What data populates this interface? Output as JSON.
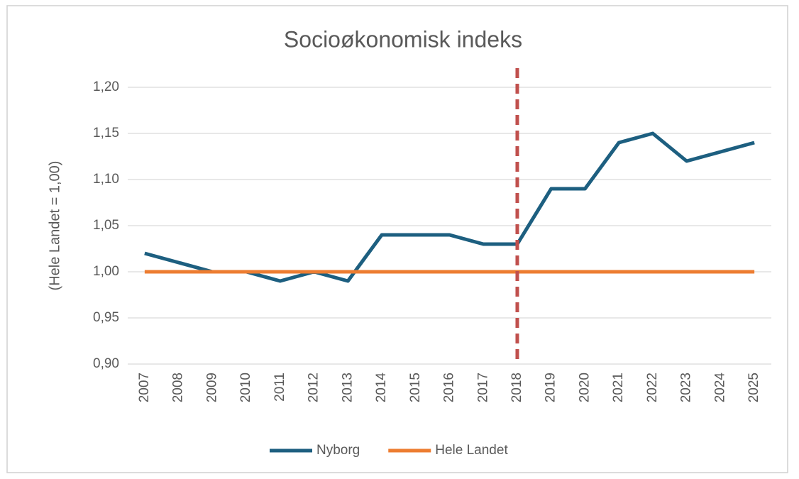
{
  "chart_data": {
    "type": "line",
    "title": "Socioøkonomisk indeks",
    "y_label": "(Hele Landet = 1,00)",
    "categories": [
      "2007",
      "2008",
      "2009",
      "2010",
      "2011",
      "2012",
      "2013",
      "2014",
      "2015",
      "2016",
      "2017",
      "2018",
      "2019",
      "2020",
      "2021",
      "2022",
      "2023",
      "2024",
      "2025"
    ],
    "series": [
      {
        "name": "Nyborg",
        "color": "#1d5f80",
        "values": [
          1.02,
          1.01,
          1.0,
          1.0,
          0.99,
          1.0,
          0.99,
          1.04,
          1.04,
          1.04,
          1.03,
          1.03,
          1.09,
          1.09,
          1.14,
          1.15,
          1.12,
          1.13,
          1.14
        ]
      },
      {
        "name": "Hele Landet",
        "color": "#ed7d31",
        "values": [
          1.0,
          1.0,
          1.0,
          1.0,
          1.0,
          1.0,
          1.0,
          1.0,
          1.0,
          1.0,
          1.0,
          1.0,
          1.0,
          1.0,
          1.0,
          1.0,
          1.0,
          1.0,
          1.0
        ]
      }
    ],
    "ylim": [
      0.9,
      1.2
    ],
    "yticks": [
      {
        "value": 0.9,
        "label": "0,90"
      },
      {
        "value": 0.95,
        "label": "0,95"
      },
      {
        "value": 1.0,
        "label": "1,00"
      },
      {
        "value": 1.05,
        "label": "1,05"
      },
      {
        "value": 1.1,
        "label": "1,10"
      },
      {
        "value": 1.15,
        "label": "1,15"
      },
      {
        "value": 1.2,
        "label": "1,20"
      }
    ],
    "grid": true,
    "legend": "bottom",
    "vline": {
      "category": "2018",
      "color": "#c0504d",
      "style": "dashed"
    }
  }
}
